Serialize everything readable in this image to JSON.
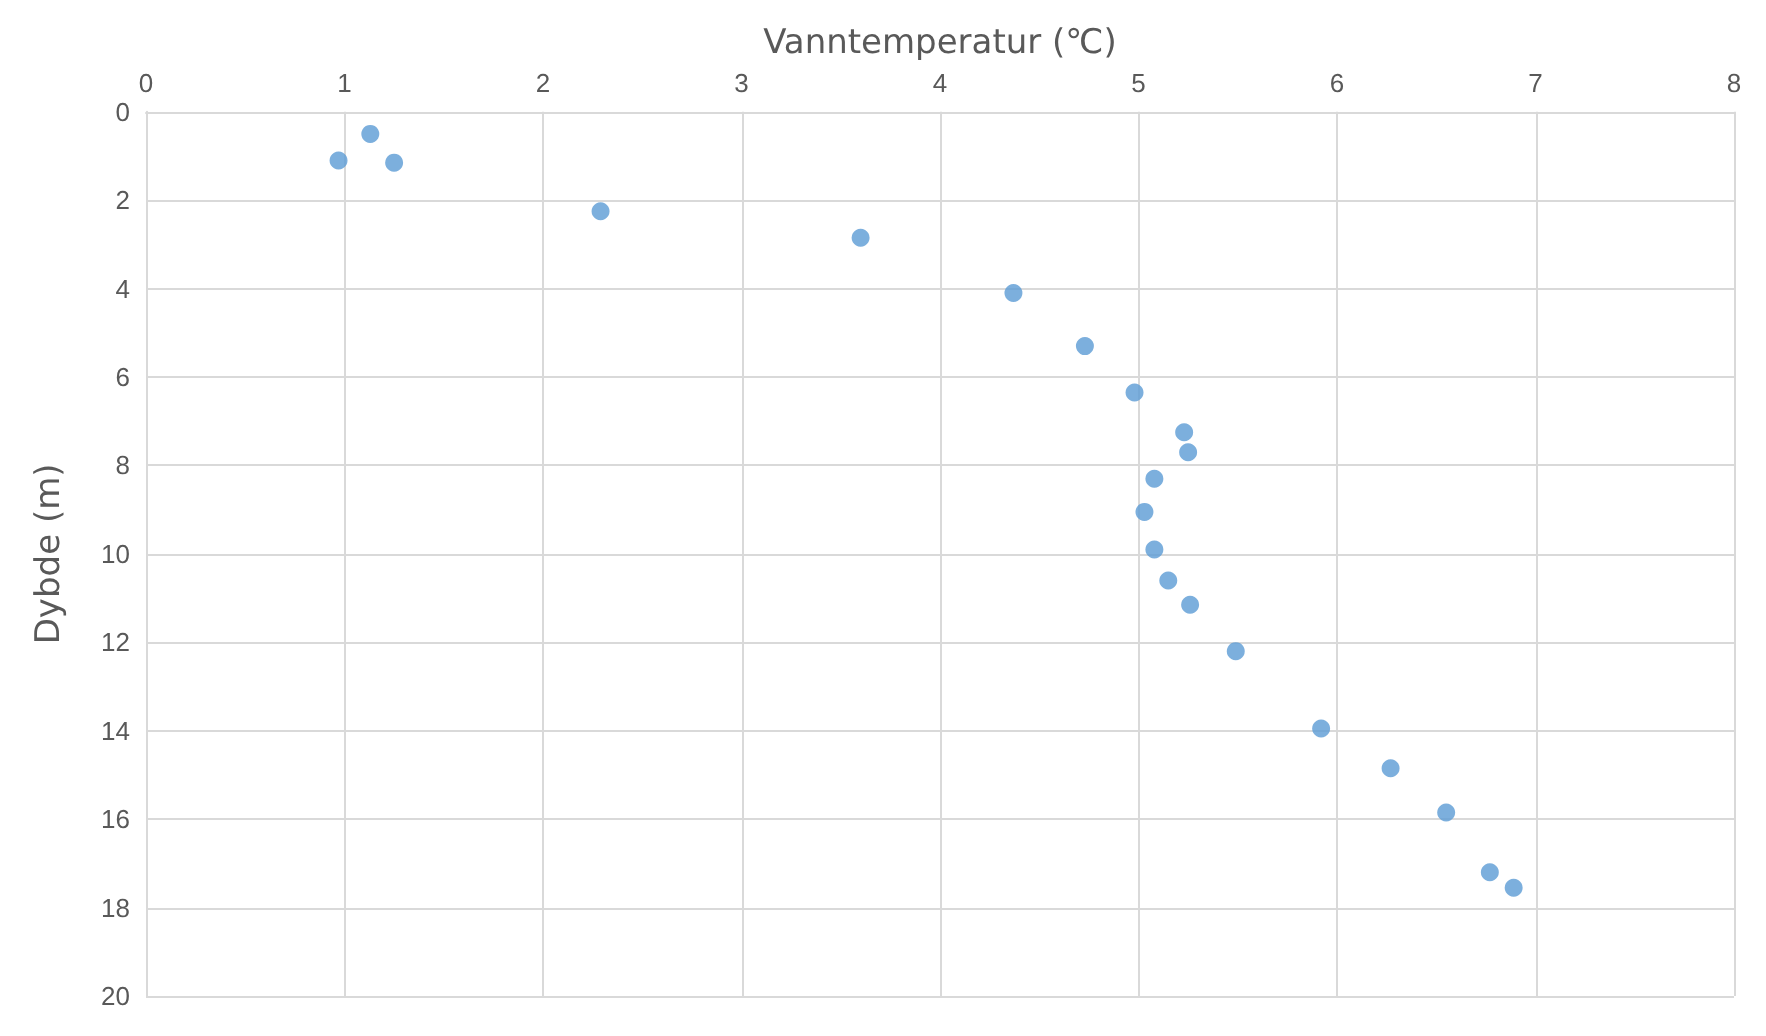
{
  "chart_data": {
    "type": "scatter",
    "xlabel": "Vanntemperatur (℃)",
    "ylabel": "Dybde (m)",
    "x": [
      1.13,
      0.97,
      1.25,
      2.29,
      3.6,
      4.37,
      4.73,
      4.98,
      5.23,
      5.25,
      5.08,
      5.03,
      5.08,
      5.15,
      5.26,
      5.49,
      5.92,
      6.27,
      6.55,
      6.77,
      6.89
    ],
    "series": [
      {
        "color": "#5b9bd5",
        "values": [
          0.5,
          1.1,
          1.15,
          2.25,
          2.85,
          4.1,
          5.3,
          6.35,
          7.25,
          7.7,
          8.3,
          9.05,
          9.9,
          10.6,
          11.15,
          12.2,
          13.95,
          14.85,
          15.85,
          17.2,
          17.55
        ]
      }
    ],
    "xlim": [
      0,
      8
    ],
    "xticks": [
      0,
      1,
      2,
      3,
      4,
      5,
      6,
      7,
      8
    ],
    "ylim": [
      20,
      0
    ],
    "yticks": [
      0,
      2,
      4,
      6,
      8,
      10,
      12,
      14,
      16,
      18,
      20
    ],
    "grid": true,
    "marker": "circle"
  }
}
